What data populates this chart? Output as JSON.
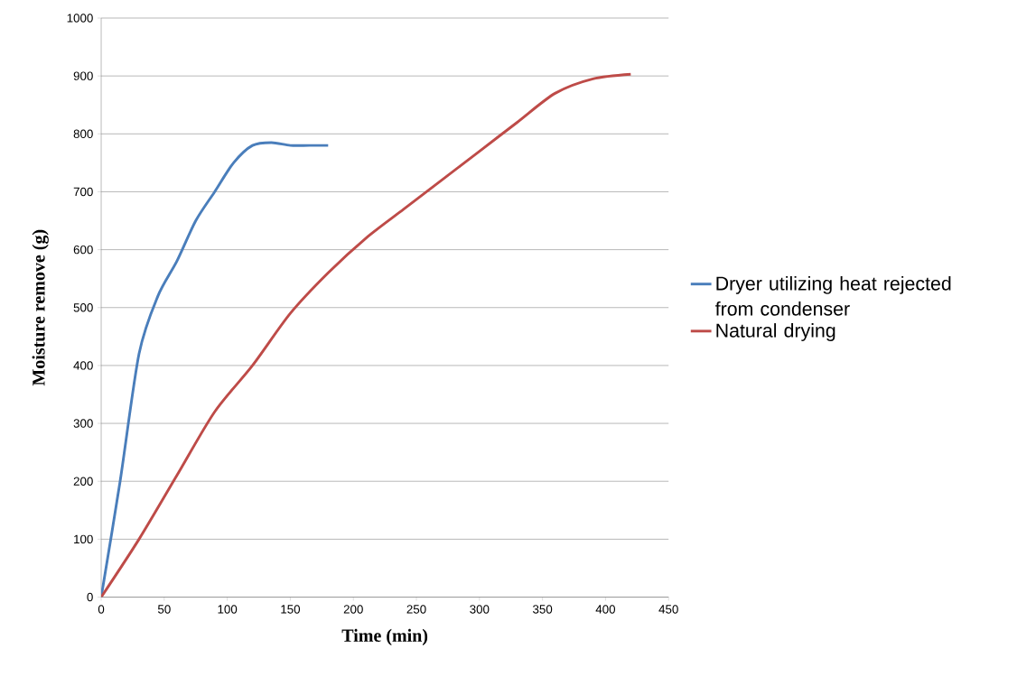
{
  "chart_data": {
    "type": "line",
    "xlabel": "Time (min)",
    "ylabel": "Moisture remove (g)",
    "xlim": [
      0,
      450
    ],
    "ylim": [
      0,
      1000
    ],
    "xticks": [
      0,
      50,
      100,
      150,
      200,
      250,
      300,
      350,
      400,
      450
    ],
    "yticks": [
      0,
      100,
      200,
      300,
      400,
      500,
      600,
      700,
      800,
      900,
      1000
    ],
    "grid": "y",
    "legend": "right",
    "marker": "none",
    "line_style": "solid",
    "series": [
      {
        "name": "Dryer utilizing heat rejected from condenser",
        "color": "#4a7ebb",
        "x": [
          0,
          15,
          30,
          45,
          60,
          75,
          90,
          105,
          120,
          135,
          150,
          165,
          180
        ],
        "values": [
          0,
          200,
          420,
          520,
          580,
          650,
          700,
          750,
          780,
          785,
          780,
          780,
          780
        ]
      },
      {
        "name": "Natural drying",
        "color": "#be4b48",
        "x": [
          0,
          30,
          60,
          90,
          120,
          150,
          180,
          210,
          240,
          270,
          300,
          330,
          360,
          390,
          420
        ],
        "values": [
          0,
          100,
          210,
          320,
          400,
          490,
          560,
          620,
          670,
          720,
          770,
          820,
          870,
          895,
          903
        ]
      }
    ]
  }
}
